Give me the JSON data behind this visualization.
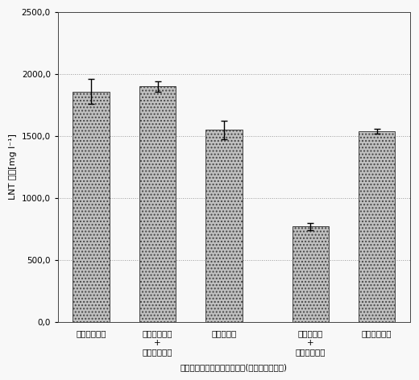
{
  "categories": [
    "グリセロール",
    "グリセロール\n+\nガラクトース",
    "グルコース",
    "グルコース\n+\nガラクトース",
    "ガラクトース"
  ],
  "values": [
    1860,
    1900,
    1550,
    770,
    1540
  ],
  "errors": [
    100,
    40,
    75,
    28,
    18
  ],
  "bar_color": "#c0c0c0",
  "bar_edge_color": "#444444",
  "bar_width": 0.55,
  "x_positions": [
    0,
    1,
    2,
    3.3,
    4.3
  ],
  "ylim": [
    0,
    2500
  ],
  "yticks": [
    0,
    500,
    1000,
    1500,
    2000,
    2500
  ],
  "ytick_labels": [
    "0,0",
    "500,0",
    "1000,0",
    "1500,0",
    "2000,0",
    "2500,0"
  ],
  "ylabel": "LNT 濃度[mg l⁻¹]",
  "xlabel": "ラクトースに追加した炭素源(複数の場合あり)",
  "grid_color": "#999999",
  "grid_linestyle": ":",
  "background_color": "#f8f8f8",
  "tick_fontsize": 7.5,
  "label_fontsize": 7.5,
  "axis_fontsize": 8,
  "xlabel_fontsize": 7.5
}
